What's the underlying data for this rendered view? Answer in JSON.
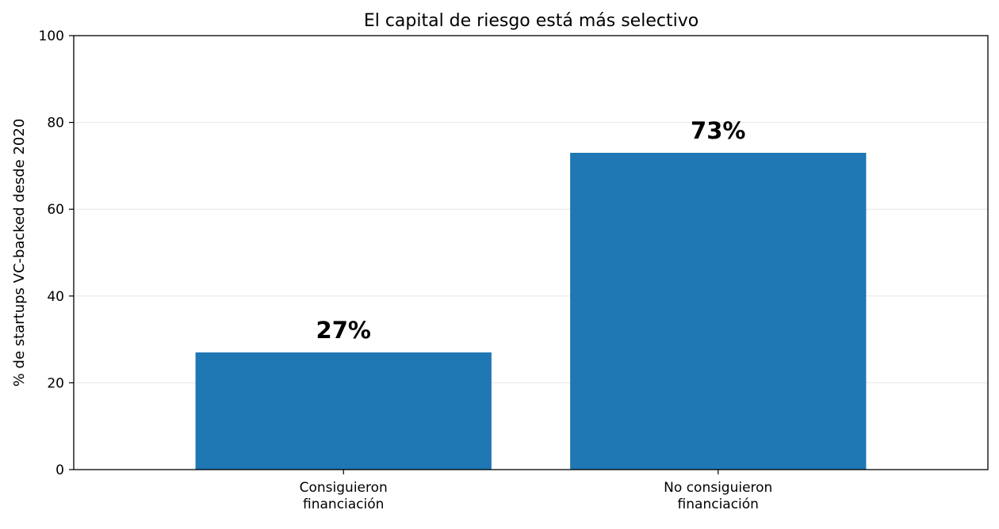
{
  "chart_data": {
    "type": "bar",
    "title": "El capital de riesgo está más selectivo",
    "xlabel": "",
    "ylabel": "% de startups VC-backed desde 2020",
    "categories": [
      [
        "Consiguieron",
        "financiación"
      ],
      [
        "No consiguieron",
        "financiación"
      ]
    ],
    "values": [
      27,
      73
    ],
    "value_labels": [
      "27%",
      "73%"
    ],
    "ylim": [
      0,
      100
    ],
    "yticks": [
      0,
      20,
      40,
      60,
      80,
      100
    ],
    "grid": "horizontal",
    "bar_color": "#1f77b4",
    "grid_color": "#e6e6e6"
  }
}
